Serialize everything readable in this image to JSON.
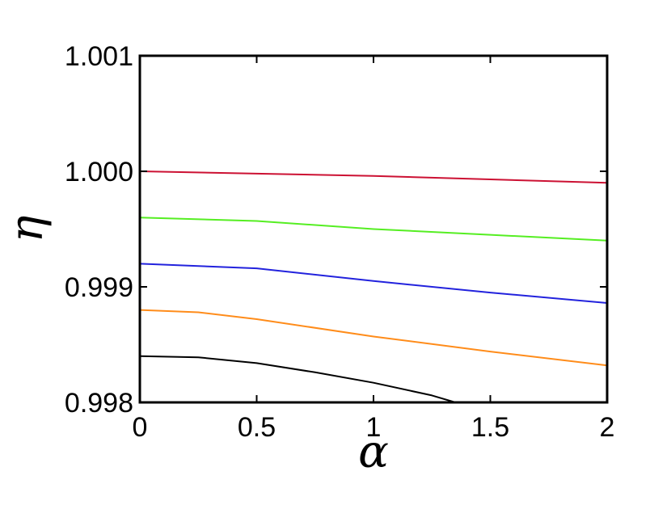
{
  "chart_data": {
    "type": "line",
    "title": "",
    "xlabel": "α",
    "ylabel": "η",
    "xlim": [
      0,
      2
    ],
    "ylim": [
      0.998,
      1.001
    ],
    "x_ticks": [
      0,
      0.5,
      1,
      1.5,
      2
    ],
    "x_tick_labels": [
      "0",
      "0.5",
      "1",
      "1.5",
      "2"
    ],
    "y_ticks": [
      0.998,
      0.999,
      1.0,
      1.001
    ],
    "y_tick_labels": [
      "0.998",
      "0.999",
      "1.000",
      "1.001"
    ],
    "grid": false,
    "legend": "none",
    "series": [
      {
        "color": "#cc1133",
        "x": [
          0,
          0.5,
          1,
          1.5,
          2
        ],
        "y": [
          1.0,
          0.99998,
          0.99996,
          0.99993,
          0.9999
        ]
      },
      {
        "color": "#55ee22",
        "x": [
          0,
          0.5,
          1,
          1.5,
          2
        ],
        "y": [
          0.9996,
          0.99957,
          0.9995,
          0.99945,
          0.9994
        ]
      },
      {
        "color": "#2222dd",
        "x": [
          0,
          0.5,
          1,
          1.5,
          2
        ],
        "y": [
          0.9992,
          0.99916,
          0.99905,
          0.99895,
          0.99886
        ]
      },
      {
        "color": "#ff8c1a",
        "x": [
          0,
          0.25,
          0.5,
          1,
          1.5,
          2
        ],
        "y": [
          0.9988,
          0.99878,
          0.99872,
          0.99857,
          0.99844,
          0.99832
        ]
      },
      {
        "color": "#000000",
        "x": [
          0,
          0.25,
          0.5,
          0.75,
          1,
          1.25,
          1.35
        ],
        "y": [
          0.9984,
          0.99839,
          0.99834,
          0.99826,
          0.99817,
          0.99806,
          0.998
        ]
      }
    ]
  }
}
